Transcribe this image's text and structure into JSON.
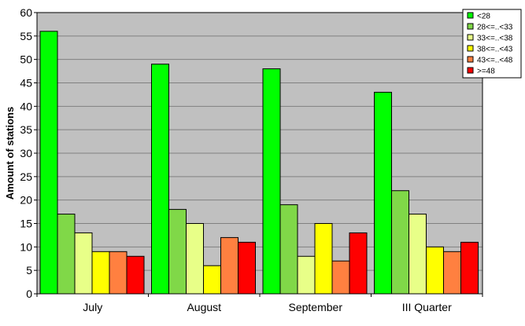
{
  "chart_data": {
    "type": "bar",
    "title": "",
    "xlabel": "",
    "ylabel": "Amount of stations",
    "ylim": [
      0,
      60
    ],
    "yticks": [
      0,
      5,
      10,
      15,
      20,
      25,
      30,
      35,
      40,
      45,
      50,
      55,
      60
    ],
    "grid": true,
    "legend_position": "top-right",
    "plot_background": "#c0c0c0",
    "categories": [
      "July",
      "August",
      "September",
      "III Quarter"
    ],
    "series": [
      {
        "name": "<28",
        "color": "#00ff00",
        "values": [
          56,
          49,
          48,
          43
        ]
      },
      {
        "name": "28<=..<33",
        "color": "#80d848",
        "values": [
          17,
          18,
          19,
          22
        ]
      },
      {
        "name": "33<=..<38",
        "color": "#e8ff88",
        "values": [
          13,
          15,
          8,
          17
        ]
      },
      {
        "name": "38<=..<43",
        "color": "#ffff00",
        "values": [
          9,
          6,
          15,
          10
        ]
      },
      {
        "name": "43<=..<48",
        "color": "#ff8040",
        "values": [
          9,
          12,
          7,
          9
        ]
      },
      {
        "name": ">=48",
        "color": "#ff0000",
        "values": [
          8,
          11,
          13,
          11
        ]
      }
    ]
  }
}
